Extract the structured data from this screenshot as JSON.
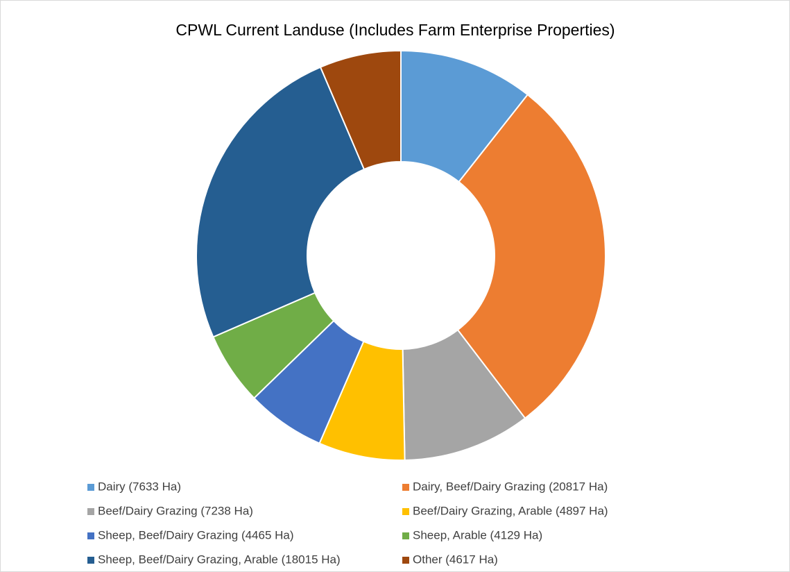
{
  "chart_data": {
    "type": "donut",
    "title": "CPWL Current Landuse (Includes Farm Enterprise Properties)",
    "categories": [
      "Dairy (7633 Ha)",
      "Dairy, Beef/Dairy Grazing (20817 Ha)",
      "Beef/Dairy Grazing (7238 Ha)",
      "Beef/Dairy Grazing, Arable (4897 Ha)",
      "Sheep, Beef/Dairy Grazing (4465 Ha)",
      "Sheep, Arable (4129 Ha)",
      "Sheep, Beef/Dairy Grazing, Arable (18015 Ha)",
      "Other (4617 Ha)"
    ],
    "values": [
      7633,
      20817,
      7238,
      4897,
      4465,
      4129,
      18015,
      4617
    ],
    "colors": [
      "#5b9bd5",
      "#ed7d31",
      "#a5a5a5",
      "#ffc000",
      "#4472c4",
      "#70ad47",
      "#255e91",
      "#9e480e"
    ],
    "legend": "bottom"
  }
}
